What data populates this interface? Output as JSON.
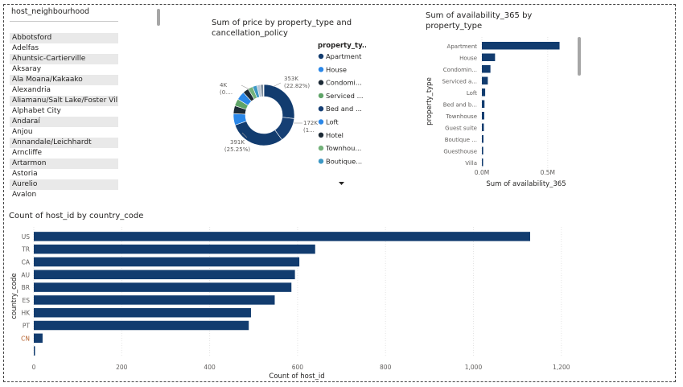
{
  "slicer": {
    "header": "host_neighbourhood",
    "items": [
      "Abbotsford",
      "Adelfas",
      "Ahuntsic-Cartierville",
      "Aksaray",
      "Ala Moana/Kakaako",
      "Alexandria",
      "Aliamanu/Salt Lake/Foster Village",
      "Alphabet City",
      "Andaraí",
      "Anjou",
      "Annandale/Leichhardt",
      "Arncliffe",
      "Artarmon",
      "Astoria",
      "Aurelio",
      "Avalon"
    ]
  },
  "chart_data": [
    {
      "type": "pie",
      "title": "Sum of price by property_type and cancellation_policy",
      "legend_title": "property_ty...",
      "legend": [
        {
          "label": "Apartment",
          "color": "#123c6f"
        },
        {
          "label": "House",
          "color": "#2a87e8"
        },
        {
          "label": "Condomi...",
          "color": "#1c2a36"
        },
        {
          "label": "Serviced ...",
          "color": "#5fa468"
        },
        {
          "label": "Bed and ...",
          "color": "#163f74"
        },
        {
          "label": "Loft",
          "color": "#2a87e8"
        },
        {
          "label": "Hotel",
          "color": "#1c2a36"
        },
        {
          "label": "Townhou...",
          "color": "#74b27b"
        },
        {
          "label": "Boutique...",
          "color": "#3d98c4"
        }
      ],
      "slices": [
        {
          "label": "353K (22.82%)",
          "value": 353,
          "color": "#123c6f"
        },
        {
          "label": "172K (1...",
          "value": 172,
          "color": "#163f74"
        },
        {
          "label": "391K (25.25%)",
          "value": 391,
          "color": "#123c6f"
        },
        {
          "label": "",
          "value": 80,
          "color": "#2a87e8"
        },
        {
          "label": "",
          "value": 55,
          "color": "#1c2a36"
        },
        {
          "label": "",
          "value": 50,
          "color": "#5fa468"
        },
        {
          "label": "",
          "value": 60,
          "color": "#2a87e8"
        },
        {
          "label": "",
          "value": 40,
          "color": "#1c2a36"
        },
        {
          "label": "",
          "value": 35,
          "color": "#74b27b"
        },
        {
          "label": "",
          "value": 30,
          "color": "#3d98c4"
        },
        {
          "label": "",
          "value": 25,
          "color": "#b9c6d5"
        },
        {
          "label": "",
          "value": 20,
          "color": "#7f8e9e"
        },
        {
          "label": "4K (0....",
          "value": 4,
          "color": "#d4e4f5"
        }
      ]
    },
    {
      "type": "bar",
      "orientation": "horizontal",
      "title": "Sum of availability_365 by property_type",
      "xlabel": "Sum of availability_365",
      "ylabel": "property_type",
      "categories": [
        "Apartment",
        "House",
        "Condomin...",
        "Serviced a...",
        "Loft",
        "Bed and b...",
        "Townhouse",
        "Guest suite",
        "Boutique ...",
        "Guesthouse",
        "Villa"
      ],
      "values": [
        0.59,
        0.1,
        0.065,
        0.045,
        0.025,
        0.02,
        0.018,
        0.015,
        0.012,
        0.01,
        0.008
      ],
      "xlim": [
        0,
        0.66
      ],
      "ticks": [
        {
          "v": 0,
          "label": "0.0M"
        },
        {
          "v": 0.5,
          "label": "0.5M"
        }
      ]
    },
    {
      "type": "bar",
      "orientation": "horizontal",
      "title": "Count of host_id by country_code",
      "xlabel": "Count of host_id",
      "ylabel": "country_code",
      "categories": [
        "US",
        "TR",
        "CA",
        "AU",
        "BR",
        "ES",
        "HK",
        "PT",
        "CN",
        ""
      ],
      "values": [
        1129,
        640,
        604,
        594,
        586,
        548,
        494,
        489,
        20,
        2
      ],
      "xlim": [
        0,
        1280
      ],
      "ticks": [
        {
          "v": 0,
          "label": "0"
        },
        {
          "v": 200,
          "label": "200"
        },
        {
          "v": 400,
          "label": "400"
        },
        {
          "v": 600,
          "label": "600"
        },
        {
          "v": 800,
          "label": "800"
        },
        {
          "v": 1000,
          "label": "1,000"
        },
        {
          "v": 1200,
          "label": "1,200"
        }
      ]
    }
  ]
}
